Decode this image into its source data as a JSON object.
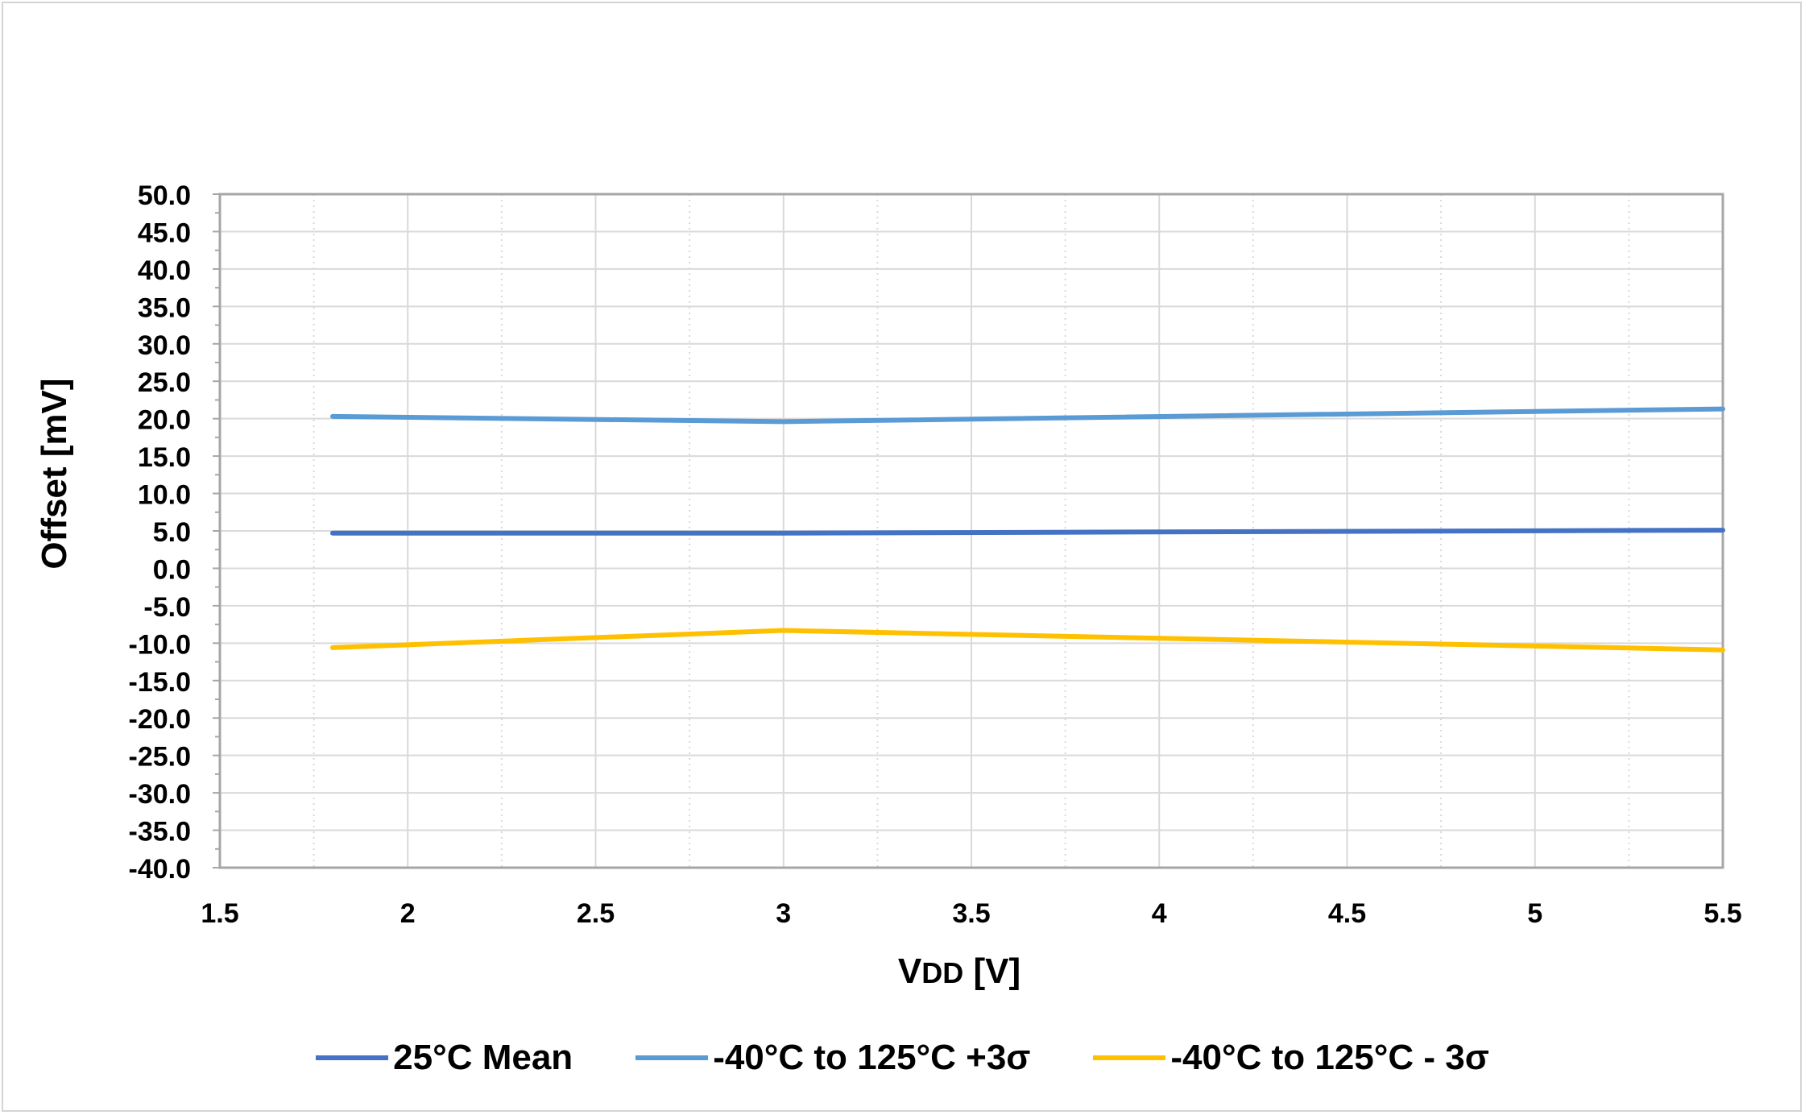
{
  "chart_data": {
    "type": "line",
    "title": "",
    "xlabel": "VDD [V]",
    "xlabel_main": "V",
    "xlabel_sub": "DD",
    "xlabel_unit": " [V]",
    "ylabel": "Offset [mV]",
    "xlim": [
      1.5,
      5.5
    ],
    "ylim": [
      -40,
      50
    ],
    "xticks": [
      "1.5",
      "2",
      "2.5",
      "3",
      "3.5",
      "4",
      "4.5",
      "5",
      "5.5"
    ],
    "yticks": [
      "50.0",
      "45.0",
      "40.0",
      "35.0",
      "30.0",
      "25.0",
      "20.0",
      "15.0",
      "10.0",
      "5.0",
      "0.0",
      "-5.0",
      "-10.0",
      "-15.0",
      "-20.0",
      "-25.0",
      "-30.0",
      "-35.0",
      "-40.0"
    ],
    "grid": true,
    "legend_position": "bottom",
    "series": [
      {
        "name": "25°C Mean",
        "color": "#4472c4",
        "x": [
          1.8,
          3.0,
          5.5
        ],
        "y": [
          4.7,
          4.7,
          5.1
        ]
      },
      {
        "name": "-40°C to 125°C +3σ",
        "color": "#5b9bd5",
        "x": [
          1.8,
          3.0,
          5.5
        ],
        "y": [
          20.3,
          19.6,
          21.3
        ]
      },
      {
        "name": "-40°C to 125°C - 3σ",
        "color": "#ffc000",
        "x": [
          1.8,
          3.0,
          5.5
        ],
        "y": [
          -10.6,
          -8.3,
          -10.9
        ]
      }
    ]
  }
}
